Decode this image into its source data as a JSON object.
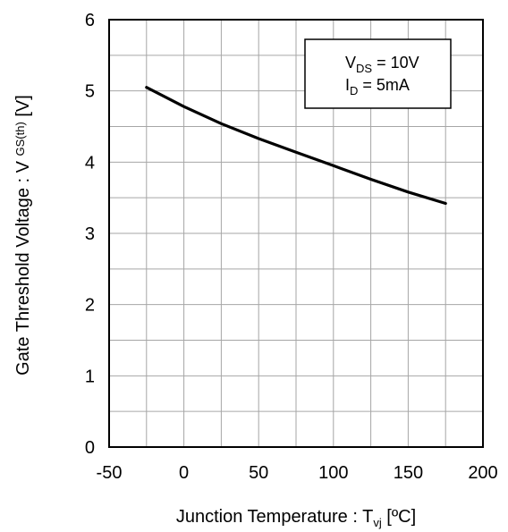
{
  "chart_data": {
    "type": "line",
    "title": "",
    "xlabel": {
      "main": "Junction Temperature : T",
      "sub": "vj",
      "tail": " [ºC]"
    },
    "ylabel": {
      "main": "Gate Threshold Voltage : V ",
      "sub": "GS(th)",
      "tail": " [V]"
    },
    "xlim": [
      -50,
      200
    ],
    "ylim": [
      0,
      6
    ],
    "x_ticks": [
      -50,
      0,
      50,
      100,
      150,
      200
    ],
    "x_tick_labels": [
      "-50",
      "0",
      "50",
      "100",
      "150",
      "200"
    ],
    "y_ticks": [
      0,
      1,
      2,
      3,
      4,
      5,
      6
    ],
    "y_tick_labels": [
      "0",
      "1",
      "2",
      "3",
      "4",
      "5",
      "6"
    ],
    "x_minor_step": 25,
    "y_minor_step": 0.5,
    "grid": true,
    "series": [
      {
        "x": [
          -25,
          0,
          25,
          50,
          75,
          100,
          125,
          150,
          175
        ],
        "y": [
          5.05,
          4.78,
          4.54,
          4.33,
          4.14,
          3.95,
          3.76,
          3.58,
          3.42
        ]
      }
    ],
    "legend": {
      "placement": "top-right",
      "lines": [
        {
          "main": "V",
          "sub": "DS",
          "tail": " = 10V"
        },
        {
          "main": "I",
          "sub": "D",
          "tail": " = 5mA"
        }
      ]
    },
    "colors": {
      "line": "#000000",
      "grid": "#a6a6a6",
      "frame": "#000000"
    }
  }
}
